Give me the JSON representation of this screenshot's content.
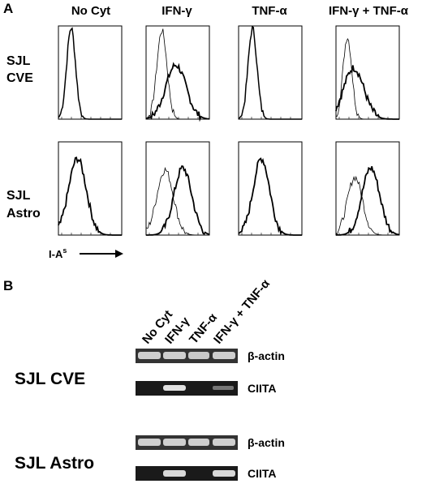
{
  "panel_a": {
    "label": "A",
    "columns": [
      "No Cyt",
      "IFN-γ",
      "TNF-α",
      "IFN-γ + TNF-α"
    ],
    "rows": [
      {
        "line1": "SJL",
        "line2": "CVE"
      },
      {
        "line1": "SJL",
        "line2": "Astro"
      }
    ],
    "axis_label": {
      "text": "I-A",
      "superscript": "s"
    }
  },
  "panel_b": {
    "label": "B",
    "lanes": [
      "No Cyt",
      "IFN-γ",
      "TNF-α",
      "IFN-γ + TNF-α"
    ],
    "groups": [
      {
        "name": "SJL CVE",
        "bands": [
          "β-actin",
          "CIITA"
        ]
      },
      {
        "name": "SJL Astro",
        "bands": [
          "β-actin",
          "CIITA"
        ]
      }
    ]
  }
}
